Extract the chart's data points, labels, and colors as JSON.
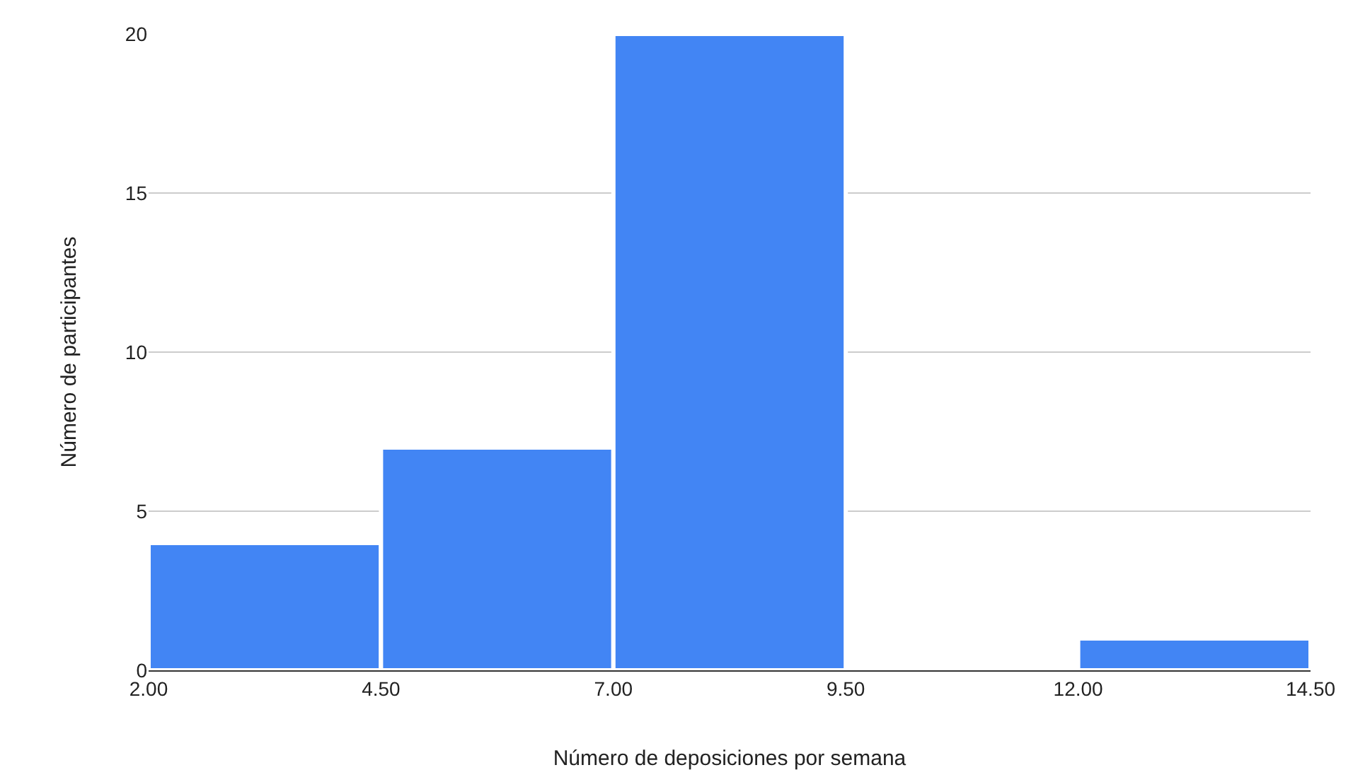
{
  "chart_data": {
    "type": "histogram",
    "xlabel": "Número de deposiciones por semana",
    "ylabel": "Número de participantes",
    "bins": [
      2,
      4.5,
      7,
      9.5,
      12,
      14.5
    ],
    "values": [
      4,
      7,
      20,
      0,
      1
    ],
    "color": "#4285f4",
    "xlim": [
      2,
      14.5
    ],
    "xticks": [
      {
        "value": 2,
        "label": "2.00"
      },
      {
        "value": 4.5,
        "label": "4.50"
      },
      {
        "value": 7,
        "label": "7.00"
      },
      {
        "value": 9.5,
        "label": "9.50"
      },
      {
        "value": 12,
        "label": "12.00"
      },
      {
        "value": 14.5,
        "label": "14.50"
      }
    ],
    "ylim": [
      0,
      20
    ],
    "yticks": [
      0,
      5,
      10,
      15,
      20
    ],
    "grid": "y",
    "legend": false
  }
}
